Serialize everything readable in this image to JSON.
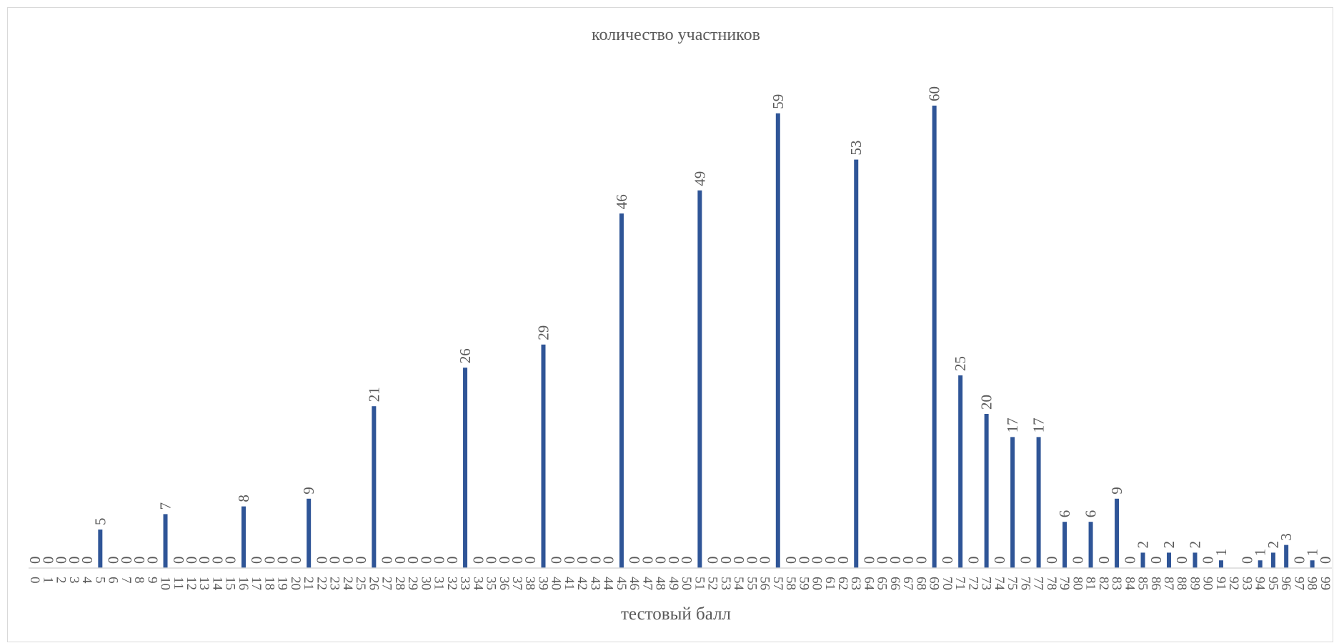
{
  "chart_data": {
    "type": "bar",
    "title": "количество участников",
    "xlabel": "тестовый балл",
    "ylabel": "",
    "ylim": [
      0,
      60
    ],
    "grid": false,
    "legend": "none",
    "categories": [
      "0",
      "1",
      "2",
      "3",
      "4",
      "5",
      "6",
      "7",
      "8",
      "9",
      "10",
      "11",
      "12",
      "13",
      "14",
      "15",
      "16",
      "17",
      "18",
      "19",
      "20",
      "21",
      "22",
      "23",
      "24",
      "25",
      "26",
      "27",
      "28",
      "29",
      "30",
      "31",
      "32",
      "33",
      "34",
      "35",
      "36",
      "37",
      "38",
      "39",
      "40",
      "41",
      "42",
      "43",
      "44",
      "45",
      "46",
      "47",
      "48",
      "49",
      "50",
      "51",
      "52",
      "53",
      "54",
      "55",
      "56",
      "57",
      "58",
      "59",
      "60",
      "61",
      "62",
      "63",
      "64",
      "65",
      "66",
      "67",
      "68",
      "69",
      "70",
      "71",
      "72",
      "73",
      "74",
      "75",
      "76",
      "77",
      "78",
      "79",
      "80",
      "81",
      "82",
      "83",
      "84",
      "85",
      "86",
      "87",
      "88",
      "89",
      "90",
      "91",
      "92",
      "93",
      "94",
      "95",
      "96",
      "97",
      "98",
      "99"
    ],
    "values": [
      0,
      0,
      0,
      0,
      0,
      5,
      0,
      0,
      0,
      0,
      7,
      0,
      0,
      0,
      0,
      0,
      8,
      0,
      0,
      0,
      0,
      9,
      0,
      0,
      0,
      0,
      21,
      0,
      0,
      0,
      0,
      0,
      0,
      26,
      0,
      0,
      0,
      0,
      0,
      29,
      0,
      0,
      0,
      0,
      0,
      46,
      0,
      0,
      0,
      0,
      0,
      49,
      0,
      0,
      0,
      0,
      0,
      59,
      0,
      0,
      0,
      0,
      0,
      53,
      0,
      0,
      0,
      0,
      0,
      60,
      0,
      25,
      0,
      20,
      0,
      17,
      0,
      17,
      0,
      6,
      0,
      6,
      0,
      9,
      0,
      2,
      0,
      2,
      0,
      2,
      0,
      1,
      null,
      0,
      1,
      2,
      3,
      0,
      1,
      0
    ],
    "data_labels": [
      "0",
      "0",
      "0",
      "0",
      "0",
      "5",
      "0",
      "0",
      "0",
      "0",
      "7",
      "0",
      "0",
      "0",
      "0",
      "0",
      "8",
      "0",
      "0",
      "0",
      "0",
      "9",
      "0",
      "0",
      "0",
      "0",
      "21",
      "0",
      "0",
      "0",
      "0",
      "0",
      "0",
      "26",
      "0",
      "0",
      "0",
      "0",
      "0",
      "29",
      "0",
      "0",
      "0",
      "0",
      "0",
      "46",
      "0",
      "0",
      "0",
      "0",
      "0",
      "49",
      "0",
      "0",
      "0",
      "0",
      "0",
      "59",
      "0",
      "0",
      "0",
      "0",
      "0",
      "53",
      "0",
      "0",
      "0",
      "0",
      "0",
      "60",
      "0",
      "25",
      "0",
      "20",
      "0",
      "17",
      "0",
      "17",
      "0",
      "6",
      "0",
      "6",
      "0",
      "9",
      "0",
      "2",
      "0",
      "2",
      "0",
      "2",
      "0",
      "1",
      "",
      "0",
      "1",
      "2",
      "3",
      "0",
      "1",
      "0"
    ],
    "colors": {
      "bar": "#2f5597",
      "text": "#595959",
      "axis": "#d9d9d9"
    }
  }
}
